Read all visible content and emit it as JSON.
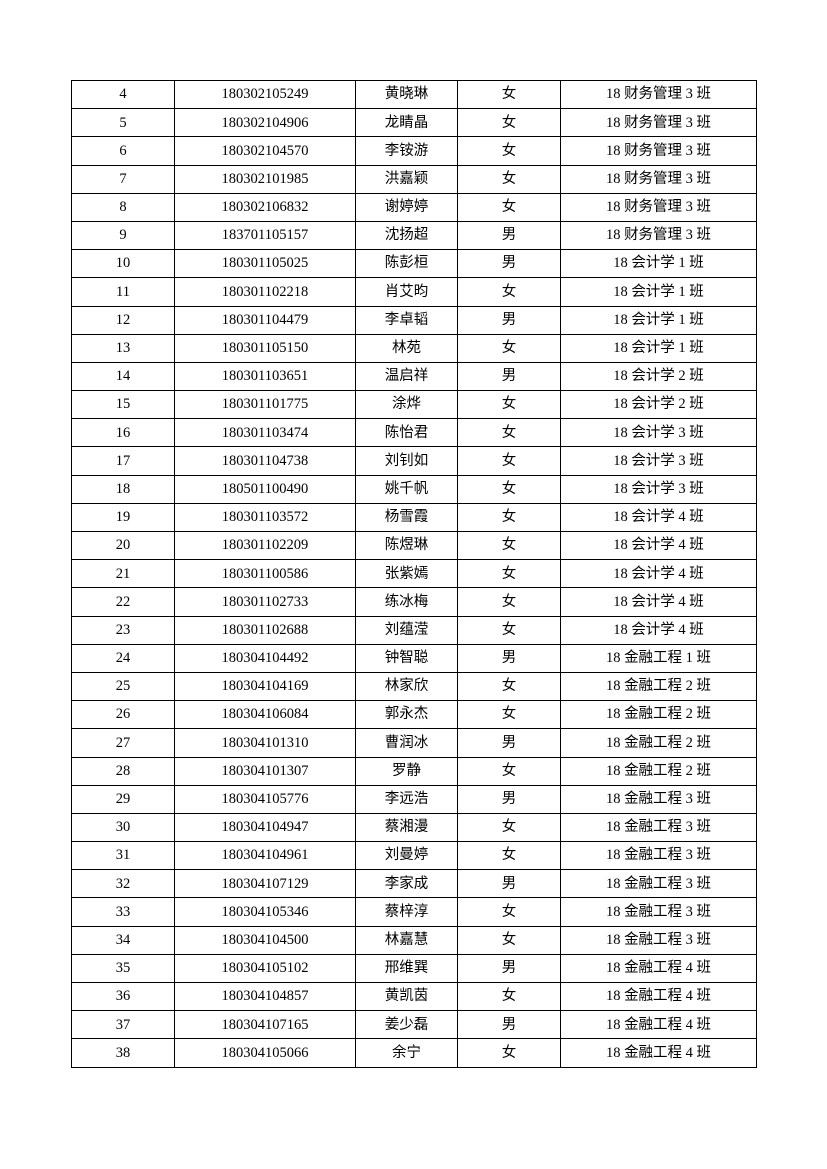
{
  "rows": [
    [
      "4",
      "180302105249",
      "黄晓琳",
      "女",
      "18 财务管理 3 班"
    ],
    [
      "5",
      "180302104906",
      "龙睛晶",
      "女",
      "18 财务管理 3 班"
    ],
    [
      "6",
      "180302104570",
      "李铵游",
      "女",
      "18 财务管理 3 班"
    ],
    [
      "7",
      "180302101985",
      "洪嘉颖",
      "女",
      "18 财务管理 3 班"
    ],
    [
      "8",
      "180302106832",
      "谢婷婷",
      "女",
      "18 财务管理 3 班"
    ],
    [
      "9",
      "183701105157",
      "沈扬超",
      "男",
      "18 财务管理 3 班"
    ],
    [
      "10",
      "180301105025",
      "陈彭桓",
      "男",
      "18 会计学 1 班"
    ],
    [
      "11",
      "180301102218",
      "肖艾昀",
      "女",
      "18 会计学 1 班"
    ],
    [
      "12",
      "180301104479",
      "李卓韬",
      "男",
      "18 会计学 1 班"
    ],
    [
      "13",
      "180301105150",
      "林苑",
      "女",
      "18 会计学 1 班"
    ],
    [
      "14",
      "180301103651",
      "温启祥",
      "男",
      "18 会计学 2 班"
    ],
    [
      "15",
      "180301101775",
      "涂烨",
      "女",
      "18 会计学 2 班"
    ],
    [
      "16",
      "180301103474",
      "陈怡君",
      "女",
      "18 会计学 3 班"
    ],
    [
      "17",
      "180301104738",
      "刘钊如",
      "女",
      "18 会计学 3 班"
    ],
    [
      "18",
      "180501100490",
      "姚千帆",
      "女",
      "18 会计学 3 班"
    ],
    [
      "19",
      "180301103572",
      "杨雪霞",
      "女",
      "18 会计学 4 班"
    ],
    [
      "20",
      "180301102209",
      "陈煜琳",
      "女",
      "18 会计学 4 班"
    ],
    [
      "21",
      "180301100586",
      "张紫嫣",
      "女",
      "18 会计学 4 班"
    ],
    [
      "22",
      "180301102733",
      "练冰梅",
      "女",
      "18 会计学 4 班"
    ],
    [
      "23",
      "180301102688",
      "刘蕴滢",
      "女",
      "18 会计学 4 班"
    ],
    [
      "24",
      "180304104492",
      "钟智聪",
      "男",
      "18 金融工程 1 班"
    ],
    [
      "25",
      "180304104169",
      "林家欣",
      "女",
      "18 金融工程 2 班"
    ],
    [
      "26",
      "180304106084",
      "郭永杰",
      "女",
      "18 金融工程 2 班"
    ],
    [
      "27",
      "180304101310",
      "曹润冰",
      "男",
      "18 金融工程 2 班"
    ],
    [
      "28",
      "180304101307",
      "罗静",
      "女",
      "18 金融工程 2 班"
    ],
    [
      "29",
      "180304105776",
      "李远浩",
      "男",
      "18 金融工程 3 班"
    ],
    [
      "30",
      "180304104947",
      "蔡湘漫",
      "女",
      "18 金融工程 3 班"
    ],
    [
      "31",
      "180304104961",
      "刘曼婷",
      "女",
      "18 金融工程 3 班"
    ],
    [
      "32",
      "180304107129",
      "李家成",
      "男",
      "18 金融工程 3 班"
    ],
    [
      "33",
      "180304105346",
      "蔡梓淳",
      "女",
      "18 金融工程 3 班"
    ],
    [
      "34",
      "180304104500",
      "林嘉慧",
      "女",
      "18 金融工程 3 班"
    ],
    [
      "35",
      "180304105102",
      "邢维巽",
      "男",
      "18 金融工程 4 班"
    ],
    [
      "36",
      "180304104857",
      "黄凯茵",
      "女",
      "18 金融工程 4 班"
    ],
    [
      "37",
      "180304107165",
      "姜少磊",
      "男",
      "18 金融工程 4 班"
    ],
    [
      "38",
      "180304105066",
      "余宁",
      "女",
      "18 金融工程 4 班"
    ]
  ]
}
